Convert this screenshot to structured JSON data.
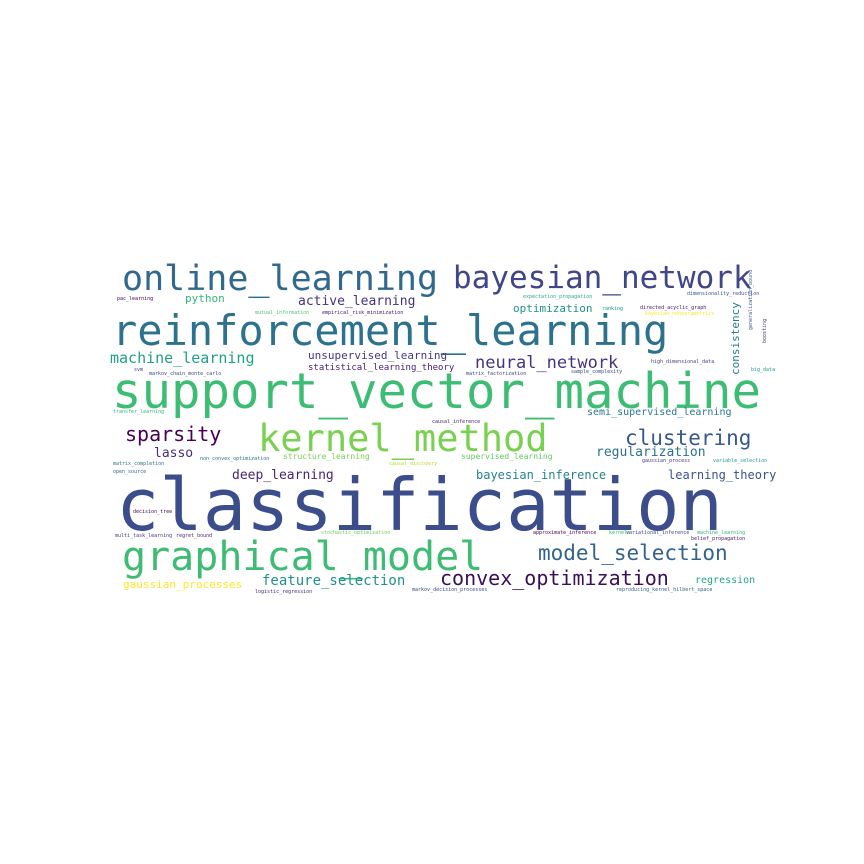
{
  "words": [
    {
      "text": "classification",
      "color": "#3b4d8b"
    },
    {
      "text": "support_vector_machine",
      "color": "#3dbc74"
    },
    {
      "text": "reinforcement_learning",
      "color": "#2c728e"
    },
    {
      "text": "graphical_model",
      "color": "#3fbc73"
    },
    {
      "text": "kernel_method",
      "color": "#7ad151"
    },
    {
      "text": "online_learning",
      "color": "#31688e"
    },
    {
      "text": "bayesian_network",
      "color": "#404688"
    },
    {
      "text": "convex_optimization",
      "color": "#3a0f57"
    },
    {
      "text": "model_selection",
      "color": "#33638d"
    },
    {
      "text": "clustering",
      "color": "#38598c"
    },
    {
      "text": "sparsity",
      "color": "#440154"
    },
    {
      "text": "machine_learning",
      "color": "#1fa187"
    },
    {
      "text": "neural_network",
      "color": "#46337e"
    },
    {
      "text": "feature_selection",
      "color": "#21918c"
    },
    {
      "text": "deep_learning",
      "color": "#482475"
    },
    {
      "text": "lasso",
      "color": "#472c7a"
    },
    {
      "text": "active_learning",
      "color": "#46327e"
    },
    {
      "text": "regularization",
      "color": "#2c728e"
    },
    {
      "text": "unsupervised_learning",
      "color": "#453781"
    },
    {
      "text": "statistical_learning_theory",
      "color": "#482071"
    },
    {
      "text": "bayesian_inference",
      "color": "#26828e"
    },
    {
      "text": "learning_theory",
      "color": "#3b528b"
    },
    {
      "text": "python",
      "color": "#35b779"
    },
    {
      "text": "optimization",
      "color": "#21918c"
    },
    {
      "text": "semi_supervised_learning",
      "color": "#2a788e"
    },
    {
      "text": "consistency",
      "color": "#287d8e"
    },
    {
      "text": "gaussian_processes",
      "color": "#fde725"
    },
    {
      "text": "regression",
      "color": "#22a884"
    },
    {
      "text": "structure_learning",
      "color": "#7ad151"
    },
    {
      "text": "supervised_learning",
      "color": "#5ec962"
    },
    {
      "text": "causal_discovery",
      "color": "#b5de2b"
    },
    {
      "text": "stochastic_optimization",
      "color": "#6ccd5a"
    },
    {
      "text": "approximate_inference",
      "color": "#440154"
    },
    {
      "text": "variational_inference",
      "color": "#3e4989"
    },
    {
      "text": "multi_task_learning",
      "color": "#443983"
    },
    {
      "text": "regret_bound",
      "color": "#481b6d"
    },
    {
      "text": "logistic_regression",
      "color": "#482878"
    },
    {
      "text": "markov_decision_processes",
      "color": "#3e4989"
    },
    {
      "text": "reproducing_kernel_hilbert_space",
      "color": "#34618d"
    },
    {
      "text": "belief_propagation",
      "color": "#481467"
    },
    {
      "text": "matrix_completion",
      "color": "#2c728e"
    },
    {
      "text": "non_convex_optimization",
      "color": "#2c728e"
    },
    {
      "text": "gaussian_process",
      "color": "#443a83"
    },
    {
      "text": "variable_selection",
      "color": "#1f9e89"
    },
    {
      "text": "decision_tree",
      "color": "#450457"
    },
    {
      "text": "transfer_learning",
      "color": "#31b57b"
    },
    {
      "text": "causal_inference",
      "color": "#481f70"
    },
    {
      "text": "expectation_propagation",
      "color": "#27ad81"
    },
    {
      "text": "dimensionality_reduction",
      "color": "#3b528b"
    },
    {
      "text": "pac_learning",
      "color": "#440154"
    },
    {
      "text": "mutual_information",
      "color": "#52c569"
    },
    {
      "text": "empirical_risk_minimization",
      "color": "#471063"
    },
    {
      "text": "ranking",
      "color": "#1e9b8a"
    },
    {
      "text": "directed_acyclic_graph",
      "color": "#471164"
    },
    {
      "text": "bayesian_nonparametrics",
      "color": "#fde725"
    },
    {
      "text": "generalization_bound",
      "color": "#3b528b"
    },
    {
      "text": "boosting",
      "color": "#472f7d"
    },
    {
      "text": "high_dimensional_data",
      "color": "#433e85"
    },
    {
      "text": "big_data",
      "color": "#1f988b"
    },
    {
      "text": "markov_chain_monte_carlo",
      "color": "#3f4788"
    },
    {
      "text": "matrix_factorization",
      "color": "#414487"
    },
    {
      "text": "sample_complexity",
      "color": "#3e4a89"
    },
    {
      "text": "svm",
      "color": "#424086"
    },
    {
      "text": "kernels",
      "color": "#2fb47c"
    },
    {
      "text": "machine_learning",
      "color": "#2fb47c"
    },
    {
      "text": "open_source",
      "color": "#31688e"
    }
  ]
}
